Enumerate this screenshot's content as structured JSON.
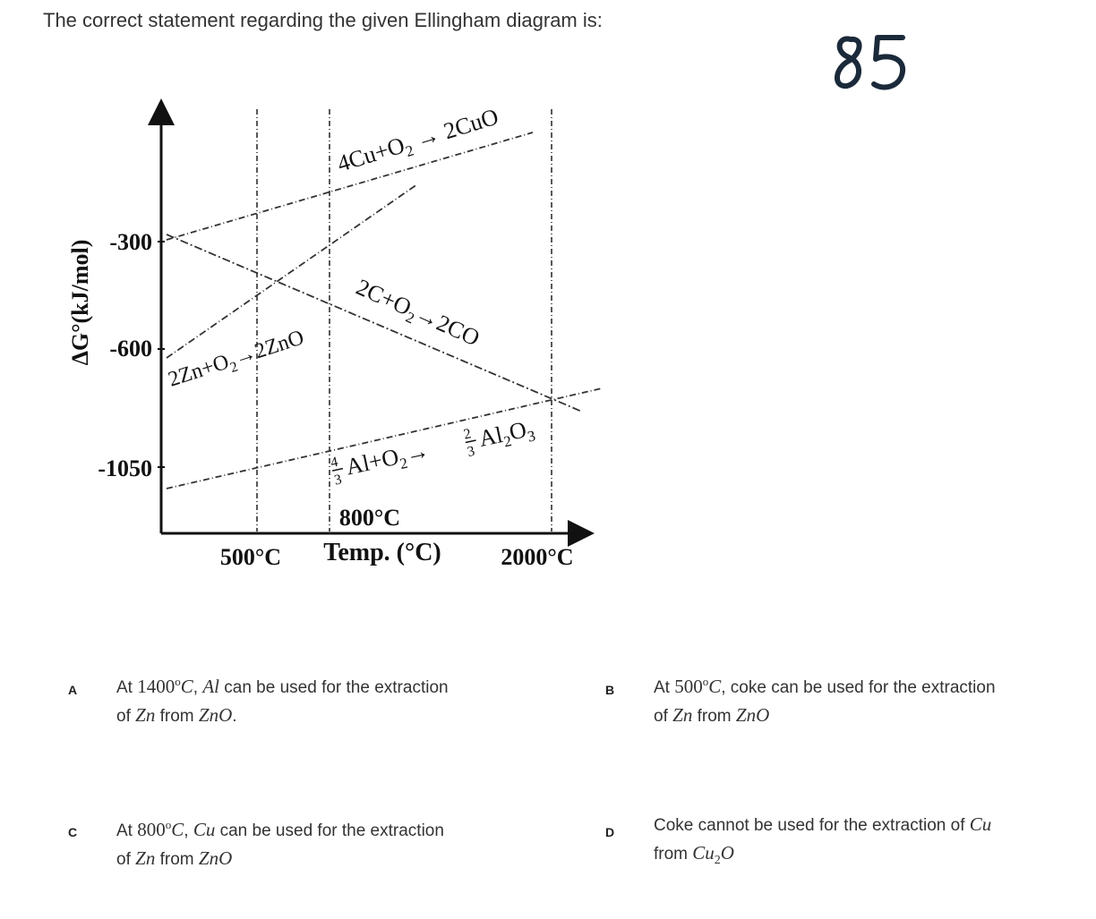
{
  "question": {
    "text": "The correct statement regarding the given Ellingham diagram is:"
  },
  "annotation": {
    "text": "85"
  },
  "diagram": {
    "y_axis_label": "ΔG°(kJ/mol)",
    "x_axis_label": "Temp. (°C)",
    "y_ticks": [
      "-300",
      "-600",
      "-1050"
    ],
    "x_ticks": [
      "500°C",
      "800°C",
      "2000°C"
    ],
    "lines": {
      "cu": {
        "reactant": "4Cu+O",
        "sub": "2",
        "product": "2CuO"
      },
      "c": {
        "reactant": "2C+O",
        "sub": "2",
        "product": "2CO"
      },
      "zn": {
        "reactant": "2Zn+O",
        "sub": "2",
        "product": "2ZnO"
      },
      "al": {
        "coef1_num": "4",
        "coef1_den": "3",
        "reactant": "Al+O",
        "sub": "2",
        "coef2_num": "2",
        "coef2_den": "3",
        "product": "Al",
        "p_sub1": "2",
        "p_mid": "O",
        "p_sub2": "3"
      }
    }
  },
  "options": [
    {
      "letter": "A",
      "t1": "At",
      "temp": "1400",
      "deg": "o",
      "unit": "C",
      "t2": ",",
      "metal": "Al",
      "t3": "can be used for the extraction",
      "t4": "of",
      "m2": "Zn",
      "t5": "from",
      "m3": "ZnO",
      "t6": "."
    },
    {
      "letter": "B",
      "t1": "At",
      "temp": "500",
      "deg": "o",
      "unit": "C",
      "t2": ", coke can be used for the extraction",
      "t4": "of",
      "m2": "Zn",
      "t5": "from",
      "m3": "ZnO"
    },
    {
      "letter": "C",
      "t1": "At",
      "temp": "800",
      "deg": "o",
      "unit": "C",
      "t2": ",",
      "metal": "Cu",
      "t3": "can be used for the extraction",
      "t4": "of",
      "m2": "Zn",
      "t5": "from",
      "m3": "ZnO"
    },
    {
      "letter": "D",
      "t1": "Coke cannot be used for the extraction of",
      "metal": "Cu",
      "t4": "from",
      "m3": "Cu",
      "sub": "2",
      "m4": "O"
    }
  ]
}
